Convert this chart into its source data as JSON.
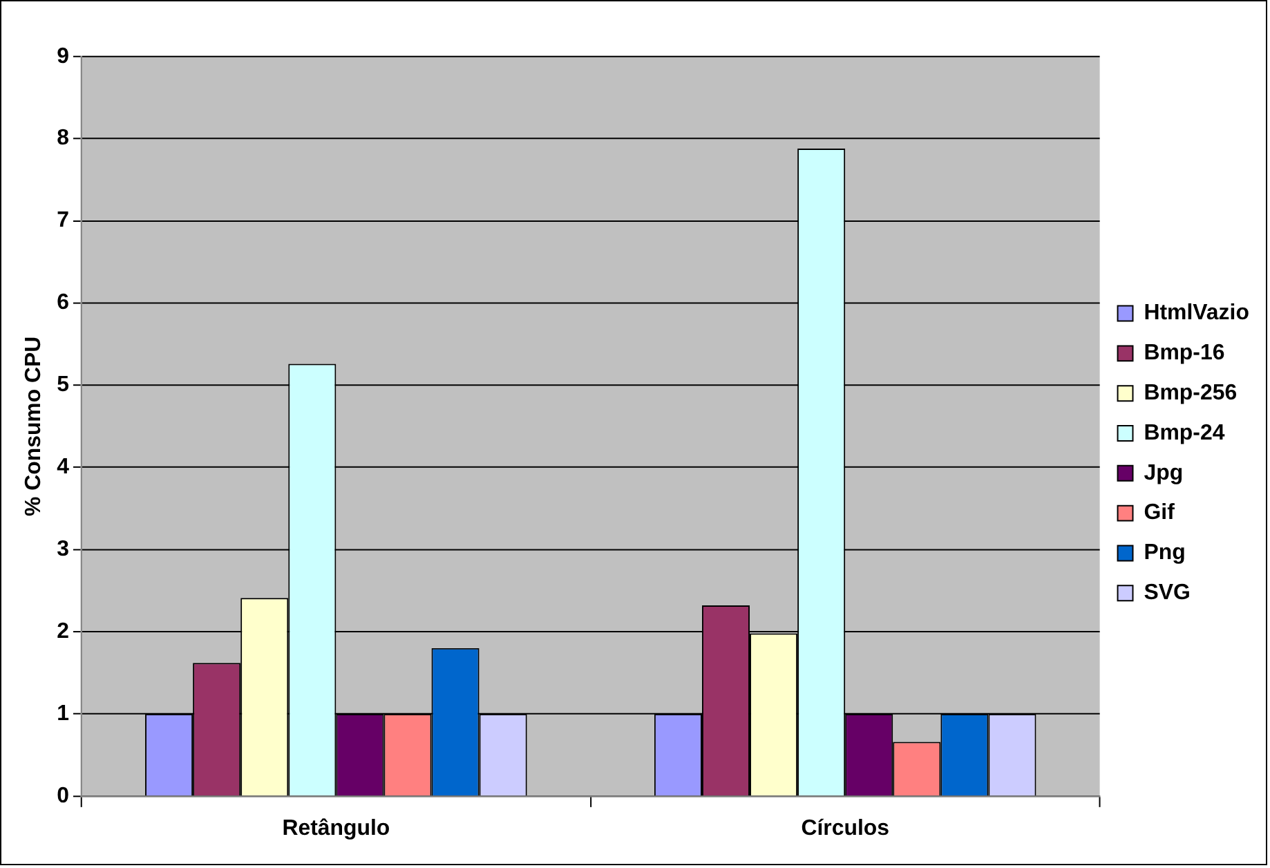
{
  "chart_data": {
    "type": "bar",
    "ylabel": "% Consumo CPU",
    "categories": [
      "Retângulo",
      "Círculos"
    ],
    "series": [
      {
        "name": "HtmlVazio",
        "color": "#9999ff",
        "values": [
          1,
          1
        ]
      },
      {
        "name": "Bmp-16",
        "color": "#993366",
        "values": [
          1.62,
          2.32
        ]
      },
      {
        "name": "Bmp-256",
        "color": "#ffffcc",
        "values": [
          2.41,
          1.98
        ]
      },
      {
        "name": "Bmp-24",
        "color": "#ccffff",
        "values": [
          5.26,
          7.88
        ]
      },
      {
        "name": "Jpg",
        "color": "#660066",
        "values": [
          1,
          1
        ]
      },
      {
        "name": "Gif",
        "color": "#ff8080",
        "values": [
          1,
          0.66
        ]
      },
      {
        "name": "Png",
        "color": "#0066cc",
        "values": [
          1.8,
          1
        ]
      },
      {
        "name": "SVG",
        "color": "#ccccff",
        "values": [
          1,
          1
        ]
      }
    ],
    "ylim": [
      0,
      9
    ],
    "yticks": [
      0,
      1,
      2,
      3,
      4,
      5,
      6,
      7,
      8,
      9
    ],
    "grid": "y",
    "legend": "right"
  }
}
